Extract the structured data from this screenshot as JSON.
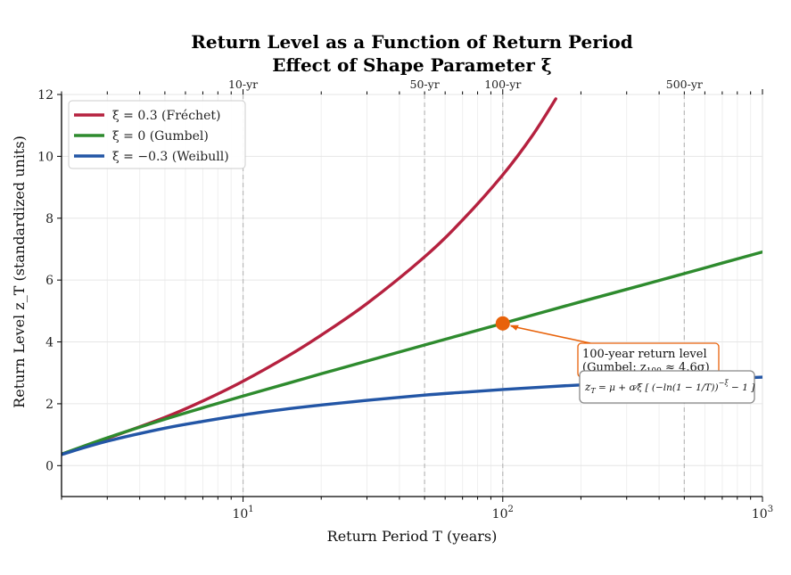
{
  "chart_data": {
    "type": "line",
    "title": "Return Level as a Function of Return Period",
    "subtitle": "Effect of Shape Parameter ξ",
    "xlabel": "Return Period  T  (years)",
    "ylabel": "Return Level  z_T  (standardized units)",
    "x_scale": "log",
    "xlim": [
      2,
      1000
    ],
    "ylim": [
      -1,
      12
    ],
    "x_ticks": [
      {
        "value": 10,
        "base": "10",
        "exp": "1"
      },
      {
        "value": 100,
        "base": "10",
        "exp": "2"
      },
      {
        "value": 1000,
        "base": "10",
        "exp": "3"
      }
    ],
    "y_ticks": [
      0,
      2,
      4,
      6,
      8,
      10,
      12
    ],
    "y_tick_labels": [
      "0",
      "2",
      "4",
      "6",
      "8",
      "10",
      "12"
    ],
    "top_markers": [
      {
        "value": 10,
        "label": "10-yr"
      },
      {
        "value": 50,
        "label": "50-yr"
      },
      {
        "value": 100,
        "label": "100-yr"
      },
      {
        "value": 500,
        "label": "500-yr"
      }
    ],
    "grid": true,
    "legend_position": "top-left",
    "series": [
      {
        "name": "ξ = 0.3 (Fréchet)",
        "color": "#b5213f",
        "x": [
          2,
          3,
          5,
          7,
          10,
          15,
          20,
          30,
          50,
          70,
          100,
          130,
          160
        ],
        "y": [
          0.37,
          0.88,
          1.56,
          2.09,
          2.73,
          3.56,
          4.22,
          5.24,
          6.75,
          7.94,
          9.4,
          10.67,
          11.86
        ]
      },
      {
        "name": "ξ = 0",
        "color": "#2e8b2e",
        "x": [
          2,
          3,
          5,
          7,
          10,
          15,
          20,
          30,
          50,
          70,
          100,
          150,
          200,
          300,
          500,
          700,
          1000
        ],
        "y": [
          0.37,
          0.9,
          1.5,
          1.87,
          2.25,
          2.67,
          2.97,
          3.38,
          3.9,
          4.24,
          4.6,
          5.01,
          5.3,
          5.7,
          6.21,
          6.55,
          6.91
        ]
      },
      {
        "name": "ξ = −0.3",
        "color": "#2356a6",
        "x": [
          2,
          3,
          5,
          7,
          10,
          15,
          20,
          30,
          50,
          70,
          100,
          150,
          200,
          300,
          500,
          700,
          1000
        ],
        "y": [
          0.36,
          0.79,
          1.21,
          1.43,
          1.64,
          1.84,
          1.96,
          2.11,
          2.28,
          2.37,
          2.46,
          2.55,
          2.61,
          2.68,
          2.76,
          2.81,
          2.86
        ]
      }
    ],
    "annotation": {
      "text_line1": "100-year return level",
      "text_line2_prefix": "(Gumbel: z",
      "text_line2_sub": "100",
      "text_line2_suffix": " ≈ 4.6σ)",
      "point": {
        "x": 100,
        "y": 4.6
      },
      "color": "#e8620a"
    },
    "formula": {
      "lhs": "z",
      "lhs_sub": "T",
      "rhs": " = μ + σ⁄ξ [ (−ln(1 − 1/T))",
      "rhs_sup": "−ξ",
      "rhs_end": " − 1 ]"
    }
  },
  "legend": {
    "items": [
      {
        "label": "ξ = 0.3 (Fréchet)",
        "color": "#b5213f"
      },
      {
        "label": "ξ = 0 (Gumbel)",
        "color": "#2e8b2e"
      },
      {
        "label": "ξ = −0.3 (Weibull)",
        "color": "#2356a6"
      }
    ]
  }
}
